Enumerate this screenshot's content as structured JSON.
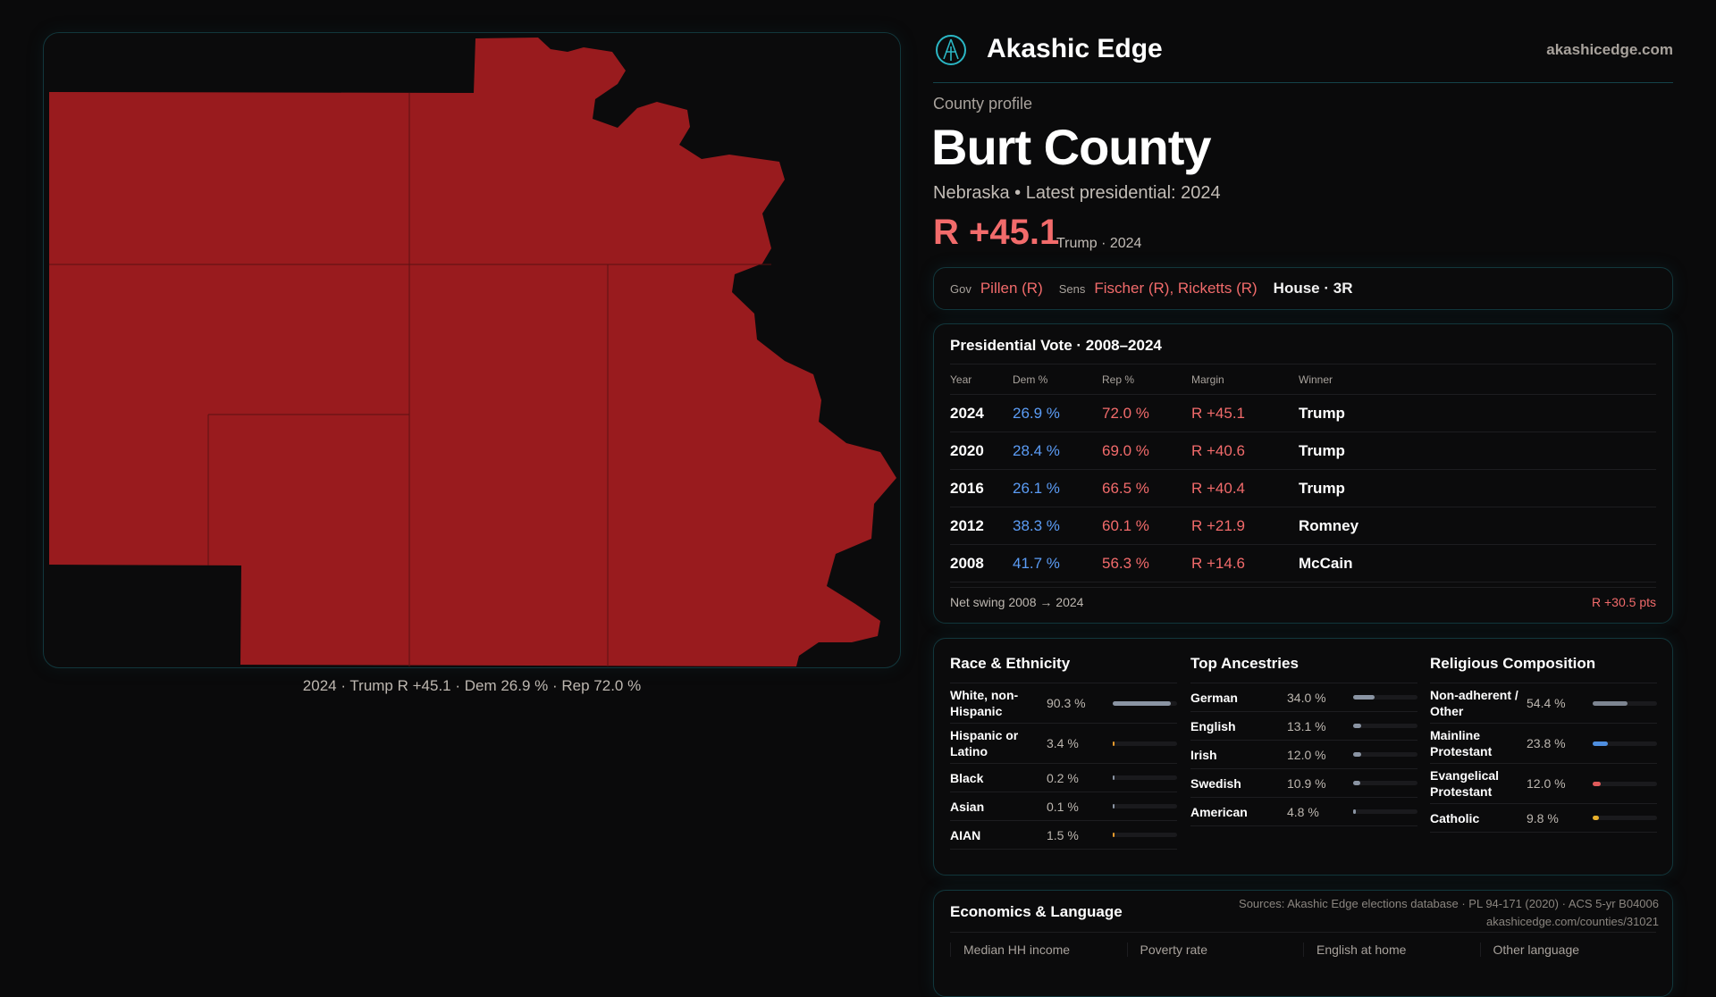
{
  "brand": {
    "name": "Akashic Edge",
    "site": "akashicedge.com",
    "accent": "#2bb6c4"
  },
  "map": {
    "caption": "2024 · Trump R +45.1 · Dem 26.9 % · Rep 72.0 %",
    "fill": "#991b1e"
  },
  "profile": {
    "eyebrow": "County profile",
    "title": "Burt County",
    "subtitle": "Nebraska • Latest presidential: 2024",
    "margin": "R +45.1",
    "margin_sub": "Trump · 2024"
  },
  "officials": {
    "gov_label": "Gov",
    "gov": "Pillen (R)",
    "sens_label": "Sens",
    "sens": "Fischer (R), Ricketts (R)",
    "house": "House · 3R"
  },
  "vote": {
    "title": "Presidential Vote · 2008–2024",
    "headers": [
      "Year",
      "Dem %",
      "Rep %",
      "Margin",
      "Winner"
    ],
    "rows": [
      [
        "2024",
        "26.9 %",
        "72.0 %",
        "R +45.1",
        "Trump"
      ],
      [
        "2020",
        "28.4 %",
        "69.0 %",
        "R +40.6",
        "Trump"
      ],
      [
        "2016",
        "26.1 %",
        "66.5 %",
        "R +40.4",
        "Trump"
      ],
      [
        "2012",
        "38.3 %",
        "60.1 %",
        "R +21.9",
        "Romney"
      ],
      [
        "2008",
        "41.7 %",
        "56.3 %",
        "R +14.6",
        "McCain"
      ]
    ],
    "swing_label": "Net swing 2008 → 2024",
    "swing": "R +30.5 pts"
  },
  "demographics": [
    {
      "title": "Race & Ethnicity",
      "items": [
        {
          "name": "White, non-Hispanic",
          "value": "90.3 %",
          "pct": 90.3,
          "color": "#8a94a3"
        },
        {
          "name": "Hispanic or Latino",
          "value": "3.4 %",
          "pct": 3.4,
          "color": "#e89a2c"
        },
        {
          "name": "Black",
          "value": "0.2 %",
          "pct": 0.2,
          "color": "#8a94a3"
        },
        {
          "name": "Asian",
          "value": "0.1 %",
          "pct": 0.1,
          "color": "#8a94a3"
        },
        {
          "name": "AIAN",
          "value": "1.5 %",
          "pct": 1.5,
          "color": "#e89a2c"
        }
      ]
    },
    {
      "title": "Top Ancestries",
      "items": [
        {
          "name": "German",
          "value": "34.0 %",
          "pct": 34.0,
          "color": "#8a94a3"
        },
        {
          "name": "English",
          "value": "13.1 %",
          "pct": 13.1,
          "color": "#8a94a3"
        },
        {
          "name": "Irish",
          "value": "12.0 %",
          "pct": 12.0,
          "color": "#8a94a3"
        },
        {
          "name": "Swedish",
          "value": "10.9 %",
          "pct": 10.9,
          "color": "#8a94a3"
        },
        {
          "name": "American",
          "value": "4.8 %",
          "pct": 4.8,
          "color": "#8a94a3"
        }
      ]
    },
    {
      "title": "Religious Composition",
      "items": [
        {
          "name": "Non-adherent / Other",
          "value": "54.4 %",
          "pct": 54.4,
          "color": "#7d8591"
        },
        {
          "name": "Mainline Protestant",
          "value": "23.8 %",
          "pct": 23.8,
          "color": "#4f8fe0"
        },
        {
          "name": "Evangelical Protestant",
          "value": "12.0 %",
          "pct": 12.0,
          "color": "#e05a5a"
        },
        {
          "name": "Catholic",
          "value": "9.8 %",
          "pct": 9.8,
          "color": "#e8b02c"
        }
      ]
    }
  ],
  "econ": {
    "title": "Economics & Language",
    "cells": [
      "Median HH income",
      "Poverty rate",
      "English at home",
      "Other language"
    ]
  },
  "sources": {
    "line1": "Sources: Akashic Edge elections database · PL 94-171 (2020) · ACS 5-yr B04006",
    "line2": "akashicedge.com/counties/31021"
  }
}
